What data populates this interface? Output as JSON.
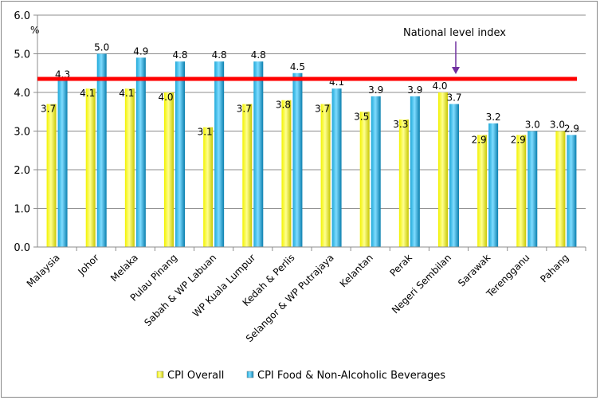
{
  "chart_data": {
    "type": "bar",
    "title": "",
    "ylabel": "%",
    "xlabel": "",
    "ylim": [
      0,
      6
    ],
    "yticks": [
      "0.0",
      "1.0",
      "2.0",
      "3.0",
      "4.0",
      "5.0",
      "6.0"
    ],
    "grid": true,
    "legend_position": "bottom",
    "categories": [
      "Malaysia",
      "Johor",
      "Melaka",
      "Pulau Pinang",
      "Sabah & WP Labuan",
      "WP Kuala Lumpur",
      "Kedah & Perlis",
      "Selangor & WP Putrajaya",
      "Kelantan",
      "Perak",
      "Negeri Sembilan",
      "Sarawak",
      "Terengganu",
      "Pahang"
    ],
    "series": [
      {
        "name": "CPI Overall",
        "color": "#f2f200",
        "values": [
          3.7,
          4.1,
          4.1,
          4.0,
          3.1,
          3.7,
          3.8,
          3.7,
          3.5,
          3.3,
          4.0,
          2.9,
          2.9,
          3.0
        ]
      },
      {
        "name": "CPI Food & Non-Alcoholic Beverages",
        "color": "#1ea8d8",
        "values": [
          4.3,
          5.0,
          4.9,
          4.8,
          4.8,
          4.8,
          4.5,
          4.1,
          3.9,
          3.9,
          3.7,
          3.2,
          3.0,
          2.9
        ]
      }
    ],
    "reference_line": {
      "label": "National level index",
      "value": 4.35,
      "color": "#ff0000",
      "arrow_color": "#7030a0"
    }
  }
}
